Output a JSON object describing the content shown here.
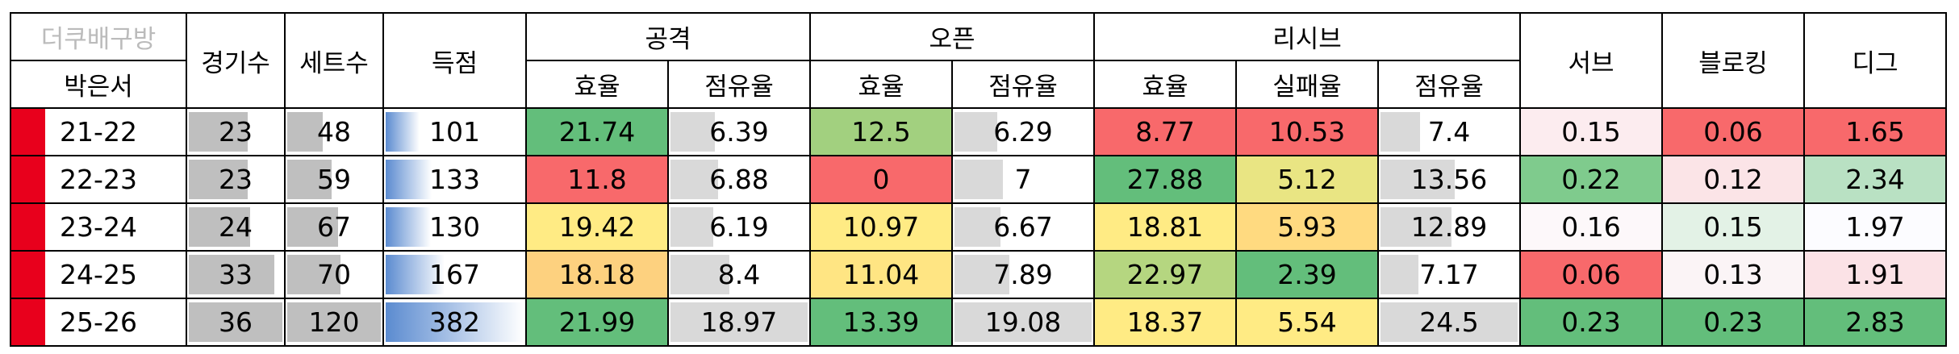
{
  "header": {
    "corner": "더쿠배구방",
    "player": "박은서",
    "games": "경기수",
    "sets": "세트수",
    "points": "득점",
    "attack": {
      "title": "공격",
      "efficiency": "효율",
      "share": "점유율"
    },
    "open": {
      "title": "오픈",
      "efficiency": "효율",
      "share": "점유율"
    },
    "receive": {
      "title": "리시브",
      "efficiency": "효율",
      "fail_rate": "실패율",
      "share": "점유율"
    },
    "serve": "서브",
    "block": "블로킹",
    "dig": "디그"
  },
  "table": {
    "column_styles": [
      "bar-gray",
      "bar-gray",
      "bar-blue",
      null,
      "bar-light",
      null,
      "bar-light",
      null,
      null,
      "bar-light",
      null,
      null,
      null
    ],
    "marker_color": "#e8001c",
    "rows": [
      {
        "season": "21-22",
        "values": [
          23,
          48,
          101,
          21.74,
          6.39,
          12.5,
          6.29,
          8.77,
          10.53,
          7.4,
          0.15,
          0.06,
          1.65
        ],
        "colors": [
          null,
          null,
          null,
          "#63be7b",
          null,
          "#a2d07f",
          null,
          "#f8696b",
          "#f8696b",
          null,
          "#fcecef",
          "#f8696b",
          "#f8696b"
        ]
      },
      {
        "season": "22-23",
        "values": [
          23,
          59,
          133,
          11.8,
          6.88,
          0,
          7,
          27.88,
          5.12,
          13.56,
          0.22,
          0.12,
          2.34
        ],
        "colors": [
          null,
          null,
          null,
          "#f8696b",
          null,
          "#f8696b",
          null,
          "#63be7b",
          "#e9e583",
          null,
          "#7fcb8d",
          "#fbe4e7",
          "#b9e1c3"
        ]
      },
      {
        "season": "23-24",
        "values": [
          24,
          67,
          130,
          19.42,
          6.19,
          10.97,
          6.67,
          18.81,
          5.93,
          12.89,
          0.16,
          0.15,
          1.97
        ],
        "colors": [
          null,
          null,
          null,
          "#ffeb84",
          null,
          "#ffeb84",
          null,
          "#ffeb84",
          "#ffda80",
          null,
          "#fdf8fa",
          "#e3f2e6",
          "#fcfcff"
        ]
      },
      {
        "season": "24-25",
        "values": [
          33,
          70,
          167,
          18.18,
          8.4,
          11.04,
          7.89,
          22.97,
          2.39,
          7.17,
          0.06,
          0.13,
          1.91
        ],
        "colors": [
          null,
          null,
          null,
          "#fdd17f",
          null,
          "#ffe583",
          null,
          "#b5d680",
          "#63be7b",
          null,
          "#f8696b",
          "#fbf4f6",
          "#fbe2e6"
        ]
      },
      {
        "season": "25-26",
        "values": [
          36,
          120,
          382,
          21.99,
          18.97,
          13.39,
          19.08,
          18.37,
          5.54,
          24.5,
          0.23,
          0.23,
          2.83
        ],
        "colors": [
          null,
          null,
          null,
          "#63be7b",
          null,
          "#63be7b",
          null,
          "#ffeb84",
          "#ffeb84",
          null,
          "#63be7b",
          "#63be7b",
          "#63be7b"
        ]
      }
    ]
  }
}
